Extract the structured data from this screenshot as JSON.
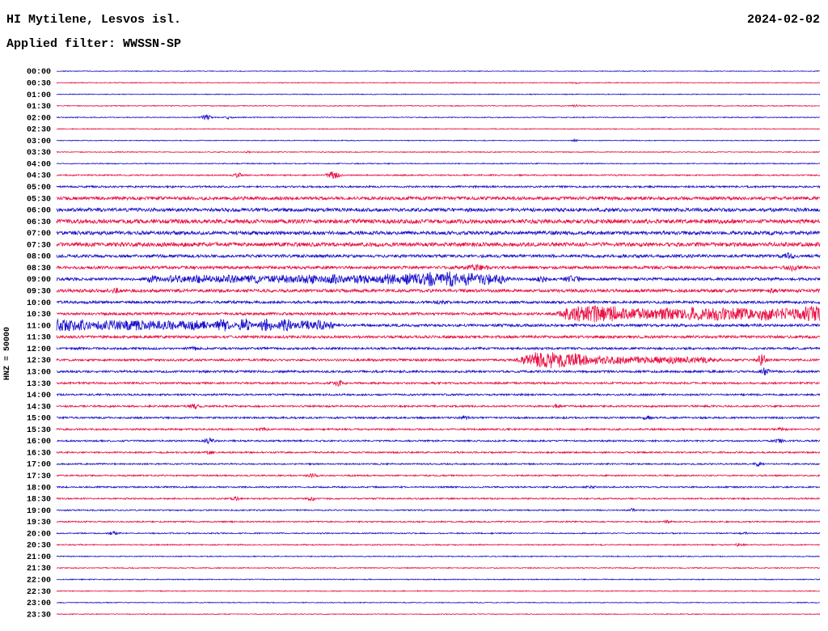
{
  "header": {
    "title": "HI Mytilene, Lesvos isl.",
    "date": "2024-02-02",
    "filter": "Applied filter: WWSSN-SP"
  },
  "axis": {
    "channel_label": "HNZ = 50000"
  },
  "chart_data": {
    "type": "line",
    "subtype": "seismogram-helicorder",
    "title": "HI Mytilene, Lesvos isl.",
    "date": "2024-02-02",
    "filter": "WWSSN-SP",
    "channel": "HNZ",
    "scale": 50000,
    "row_interval_minutes": 30,
    "rows_count": 48,
    "legend": "none",
    "grid": false,
    "colors": {
      "even_rows": "#1c12cc",
      "odd_rows": "#ea1145"
    },
    "rows": [
      {
        "time": "00:00",
        "noise": 0.45,
        "events": []
      },
      {
        "time": "00:30",
        "noise": 0.5,
        "events": [
          [
            0.68,
            0.003,
            1.1
          ]
        ]
      },
      {
        "time": "01:00",
        "noise": 0.5,
        "events": []
      },
      {
        "time": "01:30",
        "noise": 0.55,
        "events": [
          [
            0.68,
            0.003,
            1.2
          ]
        ]
      },
      {
        "time": "02:00",
        "noise": 0.55,
        "events": [
          [
            0.196,
            0.004,
            3.6
          ],
          [
            0.225,
            0.003,
            2.4
          ]
        ]
      },
      {
        "time": "02:30",
        "noise": 0.55,
        "events": []
      },
      {
        "time": "03:00",
        "noise": 0.5,
        "events": [
          [
            0.68,
            0.003,
            1.1
          ]
        ]
      },
      {
        "time": "03:30",
        "noise": 0.55,
        "events": [
          [
            0.25,
            0.003,
            1.1
          ]
        ]
      },
      {
        "time": "04:00",
        "noise": 0.6,
        "events": []
      },
      {
        "time": "04:30",
        "noise": 0.8,
        "events": [
          [
            0.238,
            0.004,
            2.6
          ],
          [
            0.362,
            0.006,
            3.8
          ]
        ]
      },
      {
        "time": "05:00",
        "noise": 1.1,
        "events": []
      },
      {
        "time": "05:30",
        "noise": 2.0,
        "events": []
      },
      {
        "time": "06:00",
        "noise": 2.1,
        "events": []
      },
      {
        "time": "06:30",
        "noise": 2.5,
        "events": []
      },
      {
        "time": "07:00",
        "noise": 2.2,
        "events": []
      },
      {
        "time": "07:30",
        "noise": 2.5,
        "events": []
      },
      {
        "time": "08:00",
        "noise": 1.8,
        "events": [
          [
            0.958,
            0.005,
            2.2
          ]
        ]
      },
      {
        "time": "08:30",
        "noise": 1.8,
        "events": [
          [
            0.55,
            0.01,
            2.2
          ],
          [
            0.963,
            0.005,
            3.0
          ]
        ]
      },
      {
        "time": "09:00",
        "noise": 1.7,
        "events": [
          [
            0.125,
            0.006,
            3.2
          ],
          [
            0.155,
            0.01,
            3.4
          ],
          [
            0.19,
            0.012,
            3.6
          ],
          [
            0.225,
            0.012,
            3.4
          ],
          [
            0.26,
            0.012,
            3.6
          ],
          [
            0.295,
            0.012,
            3.8
          ],
          [
            0.33,
            0.012,
            4.2
          ],
          [
            0.365,
            0.01,
            4.4
          ],
          [
            0.4,
            0.01,
            4.6
          ],
          [
            0.435,
            0.01,
            5.2
          ],
          [
            0.465,
            0.009,
            6.4
          ],
          [
            0.49,
            0.008,
            7.2
          ],
          [
            0.515,
            0.008,
            8.0
          ],
          [
            0.54,
            0.008,
            7.4
          ],
          [
            0.563,
            0.007,
            6.0
          ],
          [
            0.582,
            0.006,
            4.0
          ],
          [
            0.635,
            0.005,
            2.4
          ],
          [
            0.675,
            0.007,
            2.8
          ]
        ]
      },
      {
        "time": "09:30",
        "noise": 1.9,
        "events": [
          [
            0.075,
            0.005,
            2.3
          ],
          [
            0.94,
            0.004,
            1.8
          ]
        ]
      },
      {
        "time": "10:00",
        "noise": 1.6,
        "events": [
          [
            0.503,
            0.005,
            1.8
          ]
        ]
      },
      {
        "time": "10:30",
        "noise": 1.6,
        "events": [
          [
            0.668,
            0.006,
            5.0
          ],
          [
            0.685,
            0.008,
            7.8
          ],
          [
            0.705,
            0.009,
            8.6
          ],
          [
            0.73,
            0.012,
            7.4
          ],
          [
            0.765,
            0.015,
            5.2
          ],
          [
            0.8,
            0.013,
            5.6
          ],
          [
            0.835,
            0.012,
            6.2
          ],
          [
            0.865,
            0.012,
            6.4
          ],
          [
            0.895,
            0.012,
            5.4
          ],
          [
            0.925,
            0.01,
            6.8
          ],
          [
            0.955,
            0.012,
            5.8
          ],
          [
            0.985,
            0.01,
            6.6
          ],
          [
            1.0,
            0.008,
            6.0
          ]
        ]
      },
      {
        "time": "11:00",
        "noise": 1.6,
        "events": [
          [
            0.0,
            0.012,
            5.0
          ],
          [
            0.03,
            0.015,
            4.8
          ],
          [
            0.07,
            0.018,
            4.4
          ],
          [
            0.11,
            0.018,
            4.2
          ],
          [
            0.15,
            0.016,
            4.0
          ],
          [
            0.185,
            0.012,
            4.4
          ],
          [
            0.218,
            0.007,
            6.2
          ],
          [
            0.246,
            0.006,
            7.4
          ],
          [
            0.274,
            0.006,
            7.6
          ],
          [
            0.3,
            0.007,
            7.0
          ],
          [
            0.325,
            0.006,
            5.2
          ],
          [
            0.345,
            0.005,
            5.6
          ],
          [
            0.36,
            0.004,
            3.0
          ]
        ]
      },
      {
        "time": "11:30",
        "noise": 1.6,
        "events": []
      },
      {
        "time": "12:00",
        "noise": 1.35,
        "events": [
          [
            0.18,
            0.004,
            1.5
          ]
        ]
      },
      {
        "time": "12:30",
        "noise": 1.35,
        "events": [
          [
            0.612,
            0.005,
            4.6
          ],
          [
            0.628,
            0.007,
            7.8
          ],
          [
            0.645,
            0.008,
            8.8
          ],
          [
            0.662,
            0.008,
            7.8
          ],
          [
            0.68,
            0.008,
            6.0
          ],
          [
            0.703,
            0.012,
            4.2
          ],
          [
            0.735,
            0.015,
            3.4
          ],
          [
            0.775,
            0.018,
            3.0
          ],
          [
            0.815,
            0.016,
            2.7
          ],
          [
            0.85,
            0.012,
            2.4
          ],
          [
            0.924,
            0.004,
            6.4
          ]
        ]
      },
      {
        "time": "13:00",
        "noise": 1.35,
        "events": [
          [
            0.928,
            0.004,
            4.4
          ]
        ]
      },
      {
        "time": "13:30",
        "noise": 1.2,
        "events": [
          [
            0.37,
            0.004,
            2.8
          ]
        ]
      },
      {
        "time": "14:00",
        "noise": 1.1,
        "events": []
      },
      {
        "time": "14:30",
        "noise": 1.1,
        "events": [
          [
            0.18,
            0.004,
            2.8
          ],
          [
            0.655,
            0.003,
            1.8
          ]
        ]
      },
      {
        "time": "15:00",
        "noise": 1.1,
        "events": [
          [
            0.535,
            0.004,
            2.1
          ],
          [
            0.775,
            0.004,
            2.1
          ]
        ]
      },
      {
        "time": "15:30",
        "noise": 1.05,
        "events": [
          [
            0.27,
            0.004,
            2.4
          ],
          [
            0.95,
            0.003,
            1.9
          ]
        ]
      },
      {
        "time": "16:00",
        "noise": 1.0,
        "events": [
          [
            0.2,
            0.004,
            3.3
          ],
          [
            0.945,
            0.004,
            2.4
          ]
        ]
      },
      {
        "time": "16:30",
        "noise": 1.0,
        "events": [
          [
            0.2,
            0.003,
            1.9
          ]
        ]
      },
      {
        "time": "17:00",
        "noise": 0.9,
        "events": [
          [
            0.92,
            0.003,
            2.3
          ]
        ]
      },
      {
        "time": "17:30",
        "noise": 0.9,
        "events": [
          [
            0.335,
            0.004,
            2.4
          ]
        ]
      },
      {
        "time": "18:00",
        "noise": 0.9,
        "events": [
          [
            0.7,
            0.003,
            1.9
          ]
        ]
      },
      {
        "time": "18:30",
        "noise": 0.9,
        "events": [
          [
            0.235,
            0.004,
            2.4
          ],
          [
            0.335,
            0.004,
            1.9
          ]
        ]
      },
      {
        "time": "19:00",
        "noise": 0.8,
        "events": [
          [
            0.755,
            0.003,
            1.9
          ]
        ]
      },
      {
        "time": "19:30",
        "noise": 0.8,
        "events": [
          [
            0.8,
            0.003,
            1.7
          ]
        ]
      },
      {
        "time": "20:00",
        "noise": 0.7,
        "events": [
          [
            0.075,
            0.004,
            2.1
          ],
          [
            0.9,
            0.003,
            1.7
          ]
        ]
      },
      {
        "time": "20:30",
        "noise": 0.7,
        "events": [
          [
            0.895,
            0.004,
            2.1
          ]
        ]
      },
      {
        "time": "21:00",
        "noise": 0.6,
        "events": []
      },
      {
        "time": "21:30",
        "noise": 0.6,
        "events": []
      },
      {
        "time": "22:00",
        "noise": 0.55,
        "events": []
      },
      {
        "time": "22:30",
        "noise": 0.55,
        "events": []
      },
      {
        "time": "23:00",
        "noise": 0.5,
        "events": []
      },
      {
        "time": "23:30",
        "noise": 0.5,
        "events": []
      }
    ]
  }
}
